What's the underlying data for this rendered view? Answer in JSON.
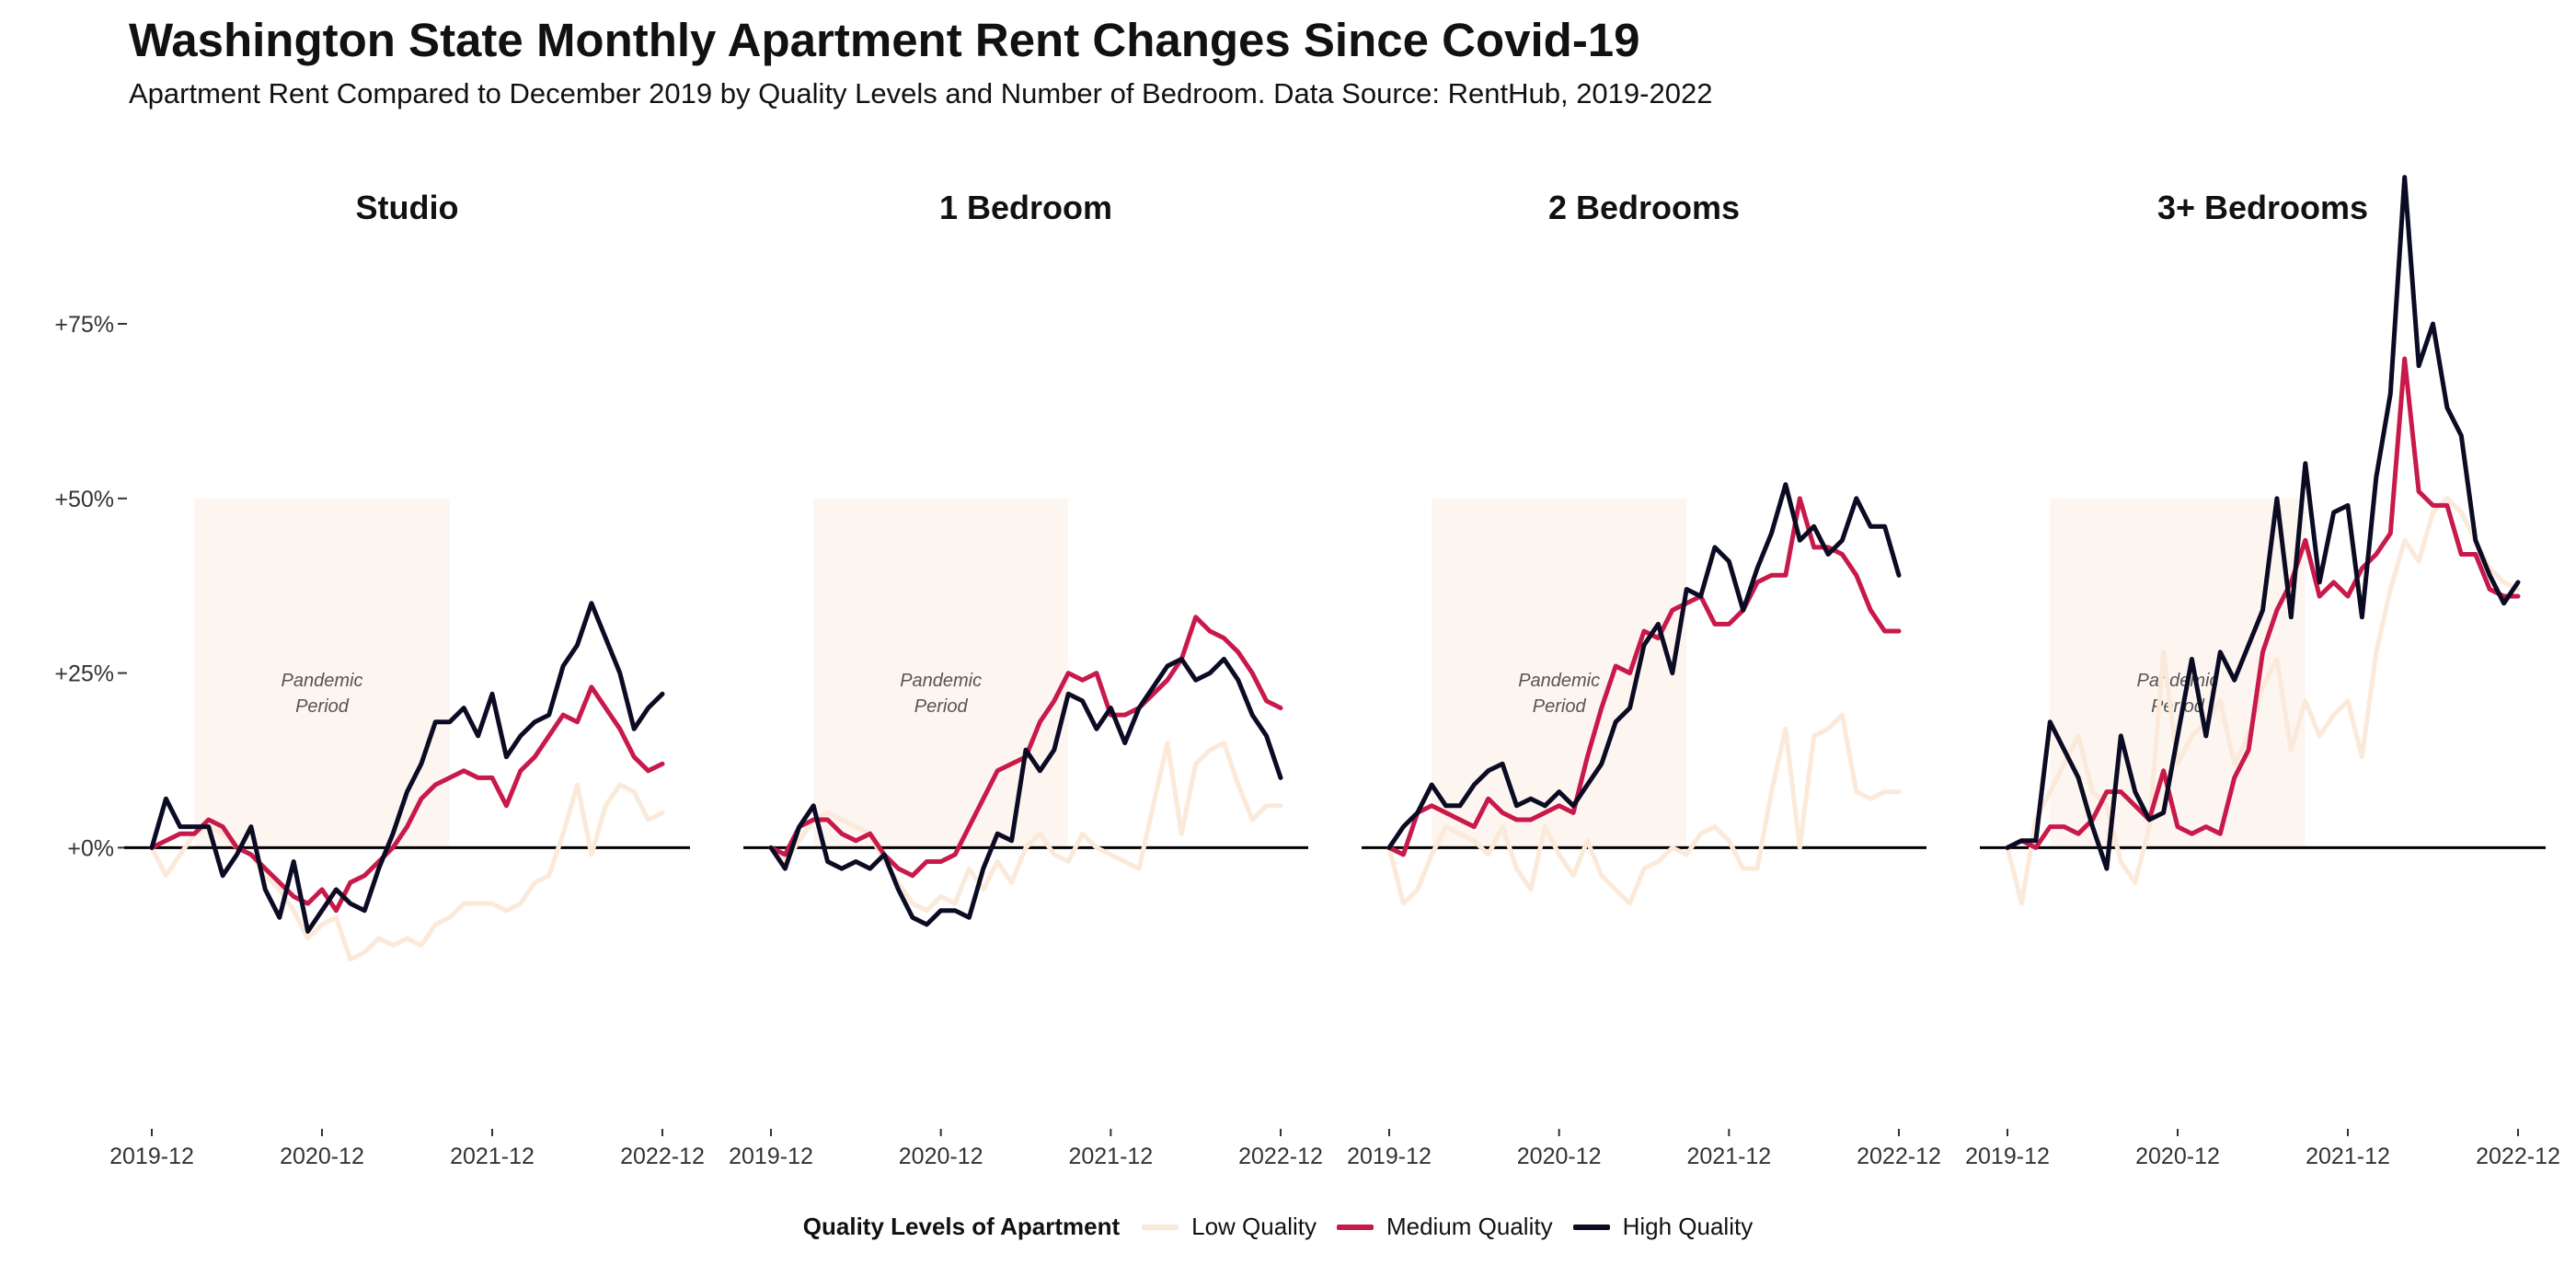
{
  "header": {
    "title": "Washington State Monthly Apartment Rent Changes Since Covid-19",
    "subtitle": "Apartment Rent Compared to December 2019 by Quality Levels and Number of Bedroom. Data Source: RentHub, 2019-2022"
  },
  "legend": {
    "title": "Quality Levels of Apartment",
    "items": [
      {
        "label": "Low Quality",
        "color": "#fbe9d9"
      },
      {
        "label": "Medium Quality",
        "color": "#c8194b"
      },
      {
        "label": "High Quality",
        "color": "#0b0c24"
      }
    ]
  },
  "chart_data": {
    "type": "line",
    "facet_by": "Number of Bedrooms",
    "x_range": [
      "2019-12",
      "2022-12"
    ],
    "x_ticks": [
      "2019-12",
      "2020-12",
      "2021-12",
      "2022-12"
    ],
    "ylim": [
      -40,
      97
    ],
    "y_ticks": [
      0,
      25,
      50,
      75
    ],
    "y_tick_labels": [
      "+0%",
      "+25%",
      "+50%",
      "+75%"
    ],
    "reference_line": 0,
    "shaded_region": {
      "label": [
        "Pandemic",
        "Period"
      ],
      "x_start": "2020-03",
      "x_end": "2021-09",
      "y_top": 50,
      "color": "#fdf5f0"
    },
    "series_colors": {
      "Low Quality": "#fbe9d9",
      "Medium Quality": "#c8194b",
      "High Quality": "#0b0c24"
    },
    "panels": [
      {
        "name": "Studio",
        "series": [
          {
            "name": "Low Quality",
            "values": [
              0,
              -4,
              -1,
              2,
              3,
              2,
              0,
              -1,
              -4,
              -6,
              -9,
              -13,
              -11,
              -10,
              -16,
              -15,
              -13,
              -14,
              -13,
              -14,
              -11,
              -10,
              -8,
              -8,
              -8,
              -9,
              -8,
              -5,
              -4,
              2,
              9,
              -1,
              6,
              9,
              8,
              4,
              5
            ]
          },
          {
            "name": "Medium Quality",
            "values": [
              0,
              1,
              2,
              2,
              4,
              3,
              0,
              -1,
              -3,
              -5,
              -7,
              -8,
              -6,
              -9,
              -5,
              -4,
              -2,
              0,
              3,
              7,
              9,
              10,
              11,
              10,
              10,
              6,
              11,
              13,
              16,
              19,
              18,
              23,
              20,
              17,
              13,
              11,
              12
            ]
          },
          {
            "name": "High Quality",
            "values": [
              0,
              7,
              3,
              3,
              3,
              -4,
              -1,
              3,
              -6,
              -10,
              -2,
              -12,
              -9,
              -6,
              -8,
              -9,
              -3,
              2,
              8,
              12,
              18,
              18,
              20,
              16,
              22,
              13,
              16,
              18,
              19,
              26,
              29,
              35,
              30,
              25,
              17,
              20,
              22
            ]
          }
        ]
      },
      {
        "name": "1 Bedroom",
        "series": [
          {
            "name": "Low Quality",
            "values": [
              0,
              -2,
              1,
              4,
              5,
              4,
              3,
              2,
              -2,
              -5,
              -8,
              -9,
              -7,
              -8,
              -3,
              -6,
              -2,
              -5,
              0,
              2,
              -1,
              -2,
              2,
              0,
              -1,
              -2,
              -3,
              6,
              15,
              2,
              12,
              14,
              15,
              9,
              4,
              6,
              6
            ]
          },
          {
            "name": "Medium Quality",
            "values": [
              0,
              -1,
              3,
              4,
              4,
              2,
              1,
              2,
              -1,
              -3,
              -4,
              -2,
              -2,
              -1,
              3,
              7,
              11,
              12,
              13,
              18,
              21,
              25,
              24,
              25,
              19,
              19,
              20,
              22,
              24,
              27,
              33,
              31,
              30,
              28,
              25,
              21,
              20
            ]
          },
          {
            "name": "High Quality",
            "values": [
              0,
              -3,
              3,
              6,
              -2,
              -3,
              -2,
              -3,
              -1,
              -6,
              -10,
              -11,
              -9,
              -9,
              -10,
              -3,
              2,
              1,
              14,
              11,
              14,
              22,
              21,
              17,
              20,
              15,
              20,
              23,
              26,
              27,
              24,
              25,
              27,
              24,
              19,
              16,
              10
            ]
          }
        ]
      },
      {
        "name": "2 Bedrooms",
        "series": [
          {
            "name": "Low Quality",
            "values": [
              0,
              -8,
              -6,
              -1,
              3,
              2,
              1,
              -1,
              3,
              -3,
              -6,
              3,
              -1,
              -4,
              1,
              -4,
              -6,
              -8,
              -3,
              -2,
              0,
              -1,
              2,
              3,
              1,
              -3,
              -3,
              8,
              17,
              0,
              16,
              17,
              19,
              8,
              7,
              8,
              8
            ]
          },
          {
            "name": "Medium Quality",
            "values": [
              0,
              -1,
              5,
              6,
              5,
              4,
              3,
              7,
              5,
              4,
              4,
              5,
              6,
              5,
              13,
              20,
              26,
              25,
              31,
              30,
              34,
              35,
              36,
              32,
              32,
              34,
              38,
              39,
              39,
              50,
              43,
              43,
              42,
              39,
              34,
              31,
              31
            ]
          },
          {
            "name": "High Quality",
            "values": [
              0,
              3,
              5,
              9,
              6,
              6,
              9,
              11,
              12,
              6,
              7,
              6,
              8,
              6,
              9,
              12,
              18,
              20,
              29,
              32,
              25,
              37,
              36,
              43,
              41,
              34,
              40,
              45,
              52,
              44,
              46,
              42,
              44,
              50,
              46,
              46,
              39
            ]
          }
        ]
      },
      {
        "name": "3+ Bedrooms",
        "series": [
          {
            "name": "Low Quality",
            "values": [
              0,
              -8,
              4,
              8,
              12,
              16,
              8,
              6,
              -2,
              -5,
              3,
              28,
              12,
              16,
              18,
              21,
              12,
              16,
              23,
              27,
              14,
              21,
              16,
              19,
              21,
              13,
              28,
              37,
              44,
              41,
              48,
              50,
              48,
              44,
              40,
              38,
              37
            ]
          },
          {
            "name": "Medium Quality",
            "values": [
              0,
              1,
              0,
              3,
              3,
              2,
              4,
              8,
              8,
              6,
              4,
              11,
              3,
              2,
              3,
              2,
              10,
              14,
              28,
              34,
              38,
              44,
              36,
              38,
              36,
              40,
              42,
              45,
              70,
              51,
              49,
              49,
              42,
              42,
              37,
              36,
              36
            ]
          },
          {
            "name": "High Quality",
            "values": [
              0,
              1,
              1,
              18,
              14,
              10,
              3,
              -3,
              16,
              8,
              4,
              5,
              16,
              27,
              16,
              28,
              24,
              29,
              34,
              50,
              33,
              55,
              38,
              48,
              49,
              33,
              53,
              65,
              96,
              69,
              75,
              63,
              59,
              44,
              39,
              35,
              38
            ]
          }
        ]
      }
    ]
  }
}
